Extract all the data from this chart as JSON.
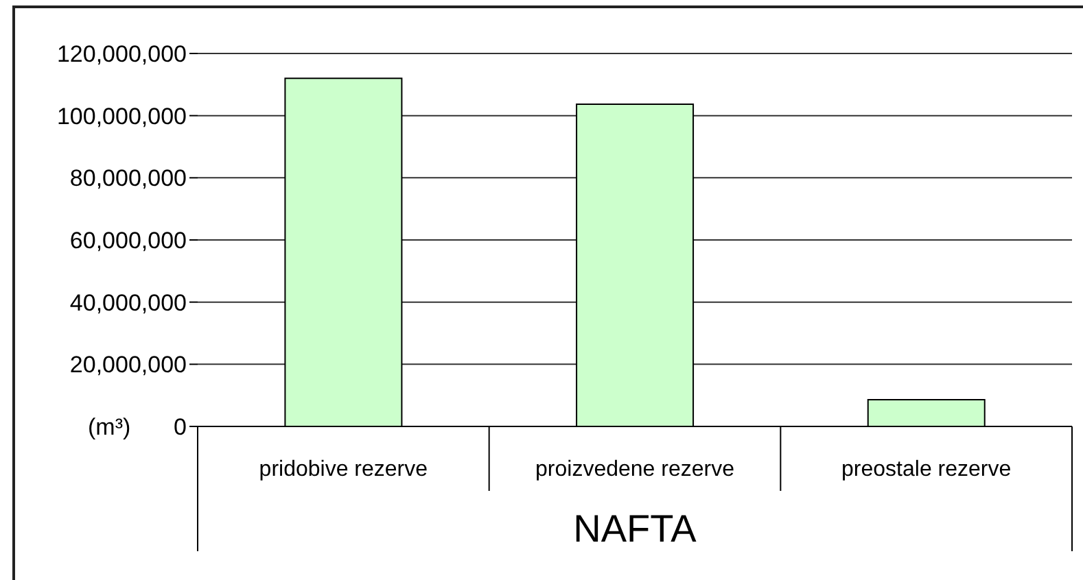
{
  "chart_data": {
    "type": "bar",
    "xlabel": "NAFTA",
    "ylabel": "(m³)",
    "categories": [
      "pridobive rezerve",
      "proizvedene rezerve",
      "preostale rezerve"
    ],
    "values": [
      112000000,
      103700000,
      8600000
    ],
    "color": "#ccffcc",
    "ylim": [
      0,
      120000000
    ],
    "yticks": [
      {
        "value": 0,
        "label": "0"
      },
      {
        "value": 20000000,
        "label": "20,000,000"
      },
      {
        "value": 40000000,
        "label": "40,000,000"
      },
      {
        "value": 60000000,
        "label": "60,000,000"
      },
      {
        "value": 80000000,
        "label": "80,000,000"
      },
      {
        "value": 100000000,
        "label": "100,000,000"
      },
      {
        "value": 120000000,
        "label": "120,000,000"
      }
    ],
    "grid": "y",
    "legend": false
  }
}
